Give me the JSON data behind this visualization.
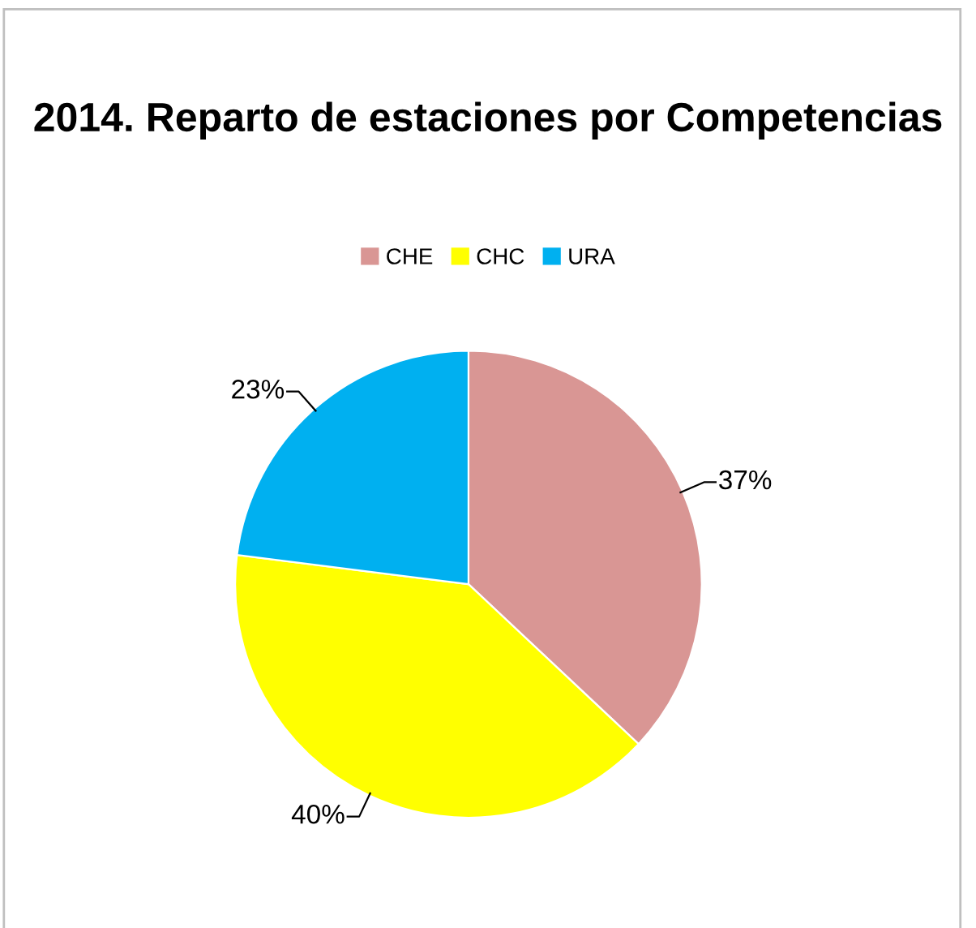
{
  "chart_data": {
    "type": "pie",
    "title": "2014. Reparto de estaciones por Competencias",
    "categories": [
      "CHE",
      "CHC",
      "URA"
    ],
    "values": [
      37,
      40,
      23
    ],
    "colors": [
      "#d99694",
      "#ffff00",
      "#00b0f0"
    ],
    "value_labels": [
      "37%",
      "40%",
      "23%"
    ],
    "legend": "top"
  }
}
